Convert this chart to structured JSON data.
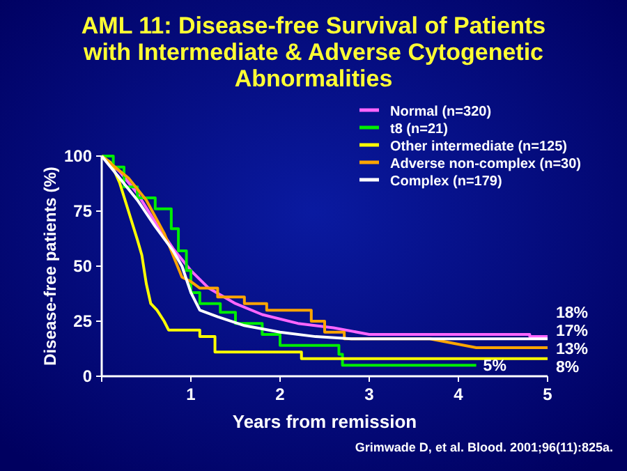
{
  "chart_data": {
    "type": "line",
    "title": "AML 11:  Disease-free Survival of Patients with Intermediate & Adverse Cytogenetic Abnormalities",
    "xlabel": "Years from remission",
    "ylabel": "Disease-free patients (%)",
    "xlim": [
      0,
      5
    ],
    "ylim": [
      0,
      100
    ],
    "xticks": [
      {
        "value": 0,
        "label": null
      },
      1,
      2,
      3,
      4,
      5
    ],
    "yticks": [
      0,
      25,
      50,
      75,
      100
    ],
    "grid": false,
    "legend": "top right",
    "marker": "none",
    "line_style": "solid",
    "series": [
      {
        "name": "Normal (n=320)",
        "color": "#ff66ff",
        "x": [
          0,
          0.2,
          0.4,
          0.6,
          0.8,
          1,
          1.2,
          1.5,
          1.8,
          2.2,
          2.6,
          3,
          4,
          4.8,
          4.8,
          5
        ],
        "values": [
          100,
          93,
          83,
          70,
          58,
          48,
          40,
          33,
          28,
          24,
          22,
          19,
          19,
          19,
          18,
          18
        ]
      },
      {
        "name": "t8 (n=21)",
        "color": "#00ee00",
        "x": [
          0,
          0.13,
          0.13,
          0.25,
          0.25,
          0.4,
          0.4,
          0.6,
          0.6,
          0.78,
          0.78,
          0.86,
          0.86,
          0.95,
          0.95,
          1.0,
          1.0,
          1.1,
          1.1,
          1.33,
          1.33,
          1.5,
          1.5,
          1.8,
          1.8,
          2.0,
          2.0,
          2.66,
          2.66,
          2.7,
          2.7,
          4.2
        ],
        "values": [
          100,
          100,
          95,
          95,
          86,
          86,
          81,
          81,
          76,
          76,
          67,
          67,
          57,
          57,
          48,
          48,
          38,
          38,
          33,
          33,
          29,
          29,
          24,
          24,
          19,
          19,
          14,
          14,
          10,
          10,
          5,
          5
        ]
      },
      {
        "name": "Other intermediate (n=125)",
        "color": "#ffff00",
        "x": [
          0,
          0.1,
          0.2,
          0.3,
          0.4,
          0.45,
          0.5,
          0.55,
          0.62,
          0.7,
          0.75,
          1.1,
          1.1,
          1.27,
          1.27,
          2.24,
          2.24,
          5
        ],
        "values": [
          100,
          97,
          88,
          75,
          62,
          55,
          42,
          33,
          30,
          25,
          21,
          21,
          18,
          18,
          11,
          11,
          8,
          8
        ]
      },
      {
        "name": "Adverse non-complex (n=30)",
        "color": "#ffa500",
        "x": [
          0,
          0.3,
          0.5,
          0.7,
          0.8,
          0.9,
          1.0,
          1.1,
          1.3,
          1.3,
          1.6,
          1.6,
          1.85,
          1.85,
          2.35,
          2.35,
          2.5,
          2.5,
          2.72,
          2.72,
          3.68,
          4.2,
          5
        ],
        "values": [
          100,
          90,
          80,
          65,
          55,
          45,
          43,
          40,
          40,
          36,
          36,
          33,
          33,
          30,
          30,
          25,
          25,
          20,
          20,
          17,
          17,
          13,
          13
        ]
      },
      {
        "name": "Complex (n=179)",
        "color": "#ffffff",
        "x": [
          0,
          0.2,
          0.4,
          0.6,
          0.8,
          0.9,
          1.0,
          1.1,
          1.3,
          1.6,
          2.0,
          2.4,
          2.8,
          5
        ],
        "values": [
          100,
          90,
          80,
          68,
          57,
          50,
          38,
          30,
          27,
          23,
          20,
          18,
          17,
          17
        ]
      }
    ],
    "annotations": [
      "18%",
      "17%",
      "13%",
      "8%",
      {
        "text": "5%",
        "x": 4.2,
        "y": 5
      },
      "Grimwade D, et al. Blood. 2001;96(11):825a."
    ]
  }
}
